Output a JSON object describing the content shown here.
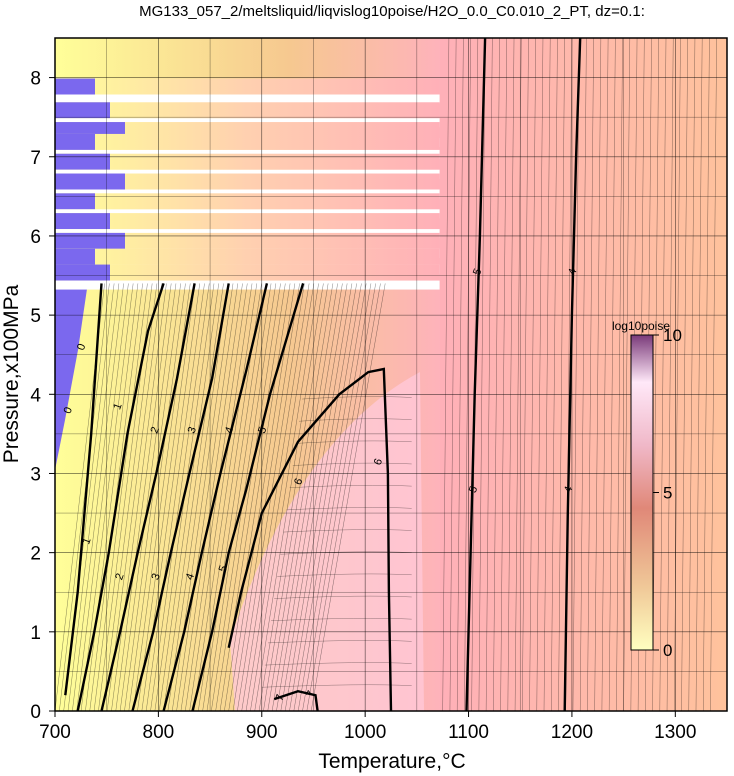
{
  "chart_data": {
    "type": "heatmap",
    "title": "MG133_057_2/meltsliquid/liqvislog10poise/H2O_0.0_C0.010_2_PT, dz=0.1:",
    "xlabel": "Temperature,°C",
    "ylabel": "Pressure,x100MPa",
    "xlim": [
      700,
      1350
    ],
    "ylim": [
      0,
      8.5
    ],
    "x_ticks": [
      "700",
      "800",
      "900",
      "1000",
      "1100",
      "1200",
      "1300"
    ],
    "y_ticks": [
      "0",
      "1",
      "2",
      "3",
      "4",
      "5",
      "6",
      "7",
      "8"
    ],
    "grid": true,
    "colorbar": {
      "title": "log10poise",
      "range": [
        0,
        10
      ],
      "tick_labels": [
        "0",
        "5",
        "10"
      ],
      "colors": [
        "#ffffc0",
        "#f0c898",
        "#e08878",
        "#f0b8c8",
        "#ffe8f8",
        "#7a3a7a"
      ]
    },
    "region_colors": {
      "low": "#7b68ee",
      "mid_low": "#ffff99",
      "mid": "#ffb0b8",
      "high": "#ffbe96"
    },
    "contour_levels": [
      {
        "value": 0,
        "label": "0",
        "points": [
          [
            710,
            0.2
          ],
          [
            722,
            1.5
          ],
          [
            735,
            3.5
          ],
          [
            745,
            5.4
          ]
        ]
      },
      {
        "value": 1,
        "label": "1",
        "points": [
          [
            722,
            0
          ],
          [
            738,
            1.0
          ],
          [
            752,
            2.0
          ],
          [
            770,
            3.5
          ],
          [
            790,
            4.8
          ],
          [
            805,
            5.4
          ]
        ]
      },
      {
        "value": 2,
        "label": "2",
        "points": [
          [
            745,
            0
          ],
          [
            763,
            1.0
          ],
          [
            780,
            2.0
          ],
          [
            798,
            3.0
          ],
          [
            818,
            4.2
          ],
          [
            835,
            5.4
          ]
        ]
      },
      {
        "value": 3,
        "label": "3",
        "points": [
          [
            775,
            0
          ],
          [
            795,
            1.0
          ],
          [
            812,
            2.0
          ],
          [
            830,
            3.0
          ],
          [
            852,
            4.2
          ],
          [
            868,
            5.4
          ]
        ]
      },
      {
        "value": 4,
        "label": "4",
        "points": [
          [
            805,
            0
          ],
          [
            825,
            1.0
          ],
          [
            842,
            2.0
          ],
          [
            860,
            3.0
          ],
          [
            885,
            4.3
          ],
          [
            905,
            5.4
          ]
        ]
      },
      {
        "value": 5,
        "label": "5",
        "points": [
          [
            833,
            0
          ],
          [
            852,
            1.0
          ],
          [
            868,
            2.0
          ],
          [
            885,
            2.8
          ],
          [
            908,
            4.0
          ],
          [
            940,
            5.4
          ]
        ]
      },
      {
        "value": 6,
        "label": "6",
        "points": [
          [
            868,
            0.8
          ],
          [
            880,
            1.5
          ],
          [
            900,
            2.5
          ],
          [
            935,
            3.4
          ],
          [
            975,
            4.0
          ],
          [
            1003,
            4.28
          ],
          [
            1018,
            4.32
          ],
          [
            1022,
            3.0
          ],
          [
            1023,
            1.5
          ],
          [
            1025,
            0
          ]
        ]
      },
      {
        "value": 7,
        "label": "7",
        "points": [
          [
            912,
            0.15
          ],
          [
            935,
            0.25
          ],
          [
            952,
            0.2
          ],
          [
            954,
            0
          ]
        ]
      },
      {
        "value": 5,
        "label": "5",
        "points": [
          [
            1098,
            0
          ],
          [
            1102,
            2.0
          ],
          [
            1106,
            4.0
          ],
          [
            1111,
            6.0
          ],
          [
            1116,
            8.5
          ]
        ]
      },
      {
        "value": 4,
        "label": "4",
        "points": [
          [
            1193,
            0
          ],
          [
            1196,
            2.5
          ],
          [
            1200,
            5.0
          ],
          [
            1204,
            7.0
          ],
          [
            1208,
            8.5
          ]
        ]
      }
    ],
    "contour_labels": [
      {
        "text": "0",
        "x": 712,
        "y": 3.8
      },
      {
        "text": "0",
        "x": 725,
        "y": 4.6
      },
      {
        "text": "1",
        "x": 730,
        "y": 2.15
      },
      {
        "text": "1",
        "x": 760,
        "y": 3.85
      },
      {
        "text": "2",
        "x": 762,
        "y": 1.7
      },
      {
        "text": "2",
        "x": 796,
        "y": 3.55
      },
      {
        "text": "3",
        "x": 797,
        "y": 1.7
      },
      {
        "text": "3",
        "x": 832,
        "y": 3.55
      },
      {
        "text": "4",
        "x": 830,
        "y": 1.7
      },
      {
        "text": "4",
        "x": 868,
        "y": 3.55
      },
      {
        "text": "5",
        "x": 862,
        "y": 1.8
      },
      {
        "text": "5",
        "x": 900,
        "y": 3.55
      },
      {
        "text": "6",
        "x": 935,
        "y": 2.9
      },
      {
        "text": "6",
        "x": 1012,
        "y": 3.15
      },
      {
        "text": "7",
        "x": 917,
        "y": 0.17
      },
      {
        "text": "7",
        "x": 947,
        "y": 0.22
      },
      {
        "text": "5",
        "x": 1108,
        "y": 5.55
      },
      {
        "text": "5",
        "x": 1104,
        "y": 2.8
      },
      {
        "text": "4",
        "x": 1200,
        "y": 5.55
      },
      {
        "text": "4",
        "x": 1196,
        "y": 2.8
      }
    ],
    "missing_band_rows": [
      7.9,
      7.6,
      7.35,
      7.2,
      6.95,
      6.7,
      6.45,
      6.2,
      5.95,
      5.75,
      5.55
    ]
  }
}
